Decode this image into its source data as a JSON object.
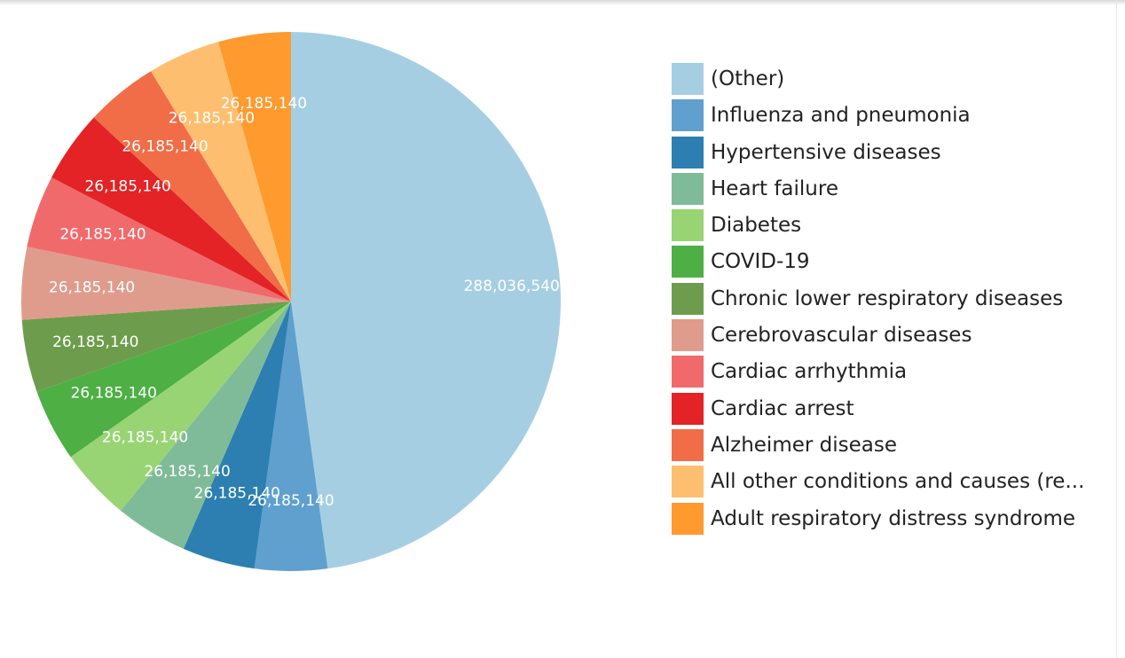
{
  "chart_data": {
    "type": "pie",
    "title": "",
    "legend_position": "right",
    "slices": [
      {
        "label": "(Other)",
        "value": 288036540,
        "value_label": "288,036,540",
        "color": "#a6cee3"
      },
      {
        "label": "Influenza and pneumonia",
        "value": 26185140,
        "value_label": "26,185,140",
        "color": "#5fa0cf"
      },
      {
        "label": "Hypertensive diseases",
        "value": 26185140,
        "value_label": "26,185,140",
        "color": "#2c7fb0"
      },
      {
        "label": "Heart failure",
        "value": 26185140,
        "value_label": "26,185,140",
        "color": "#7fbb98"
      },
      {
        "label": "Diabetes",
        "value": 26185140,
        "value_label": "26,185,140",
        "color": "#98d474"
      },
      {
        "label": "COVID-19",
        "value": 26185140,
        "value_label": "26,185,140",
        "color": "#4daf44"
      },
      {
        "label": "Chronic lower respiratory diseases",
        "value": 26185140,
        "value_label": "26,185,140",
        "color": "#6d9d4c"
      },
      {
        "label": "Cerebrovascular diseases",
        "value": 26185140,
        "value_label": "26,185,140",
        "color": "#df9c8c"
      },
      {
        "label": "Cardiac arrhythmia",
        "value": 26185140,
        "value_label": "26,185,140",
        "color": "#f06a6b"
      },
      {
        "label": "Cardiac arrest",
        "value": 26185140,
        "value_label": "26,185,140",
        "color": "#e32326"
      },
      {
        "label": "Alzheimer disease",
        "value": 26185140,
        "value_label": "26,185,140",
        "color": "#f06d47"
      },
      {
        "label": "All other conditions and causes (re...",
        "value": 26185140,
        "value_label": "26,185,140",
        "color": "#fdbf6f"
      },
      {
        "label": "Adult respiratory distress syndrome",
        "value": 26185140,
        "value_label": "26,185,140",
        "color": "#fe9a2e"
      }
    ]
  }
}
